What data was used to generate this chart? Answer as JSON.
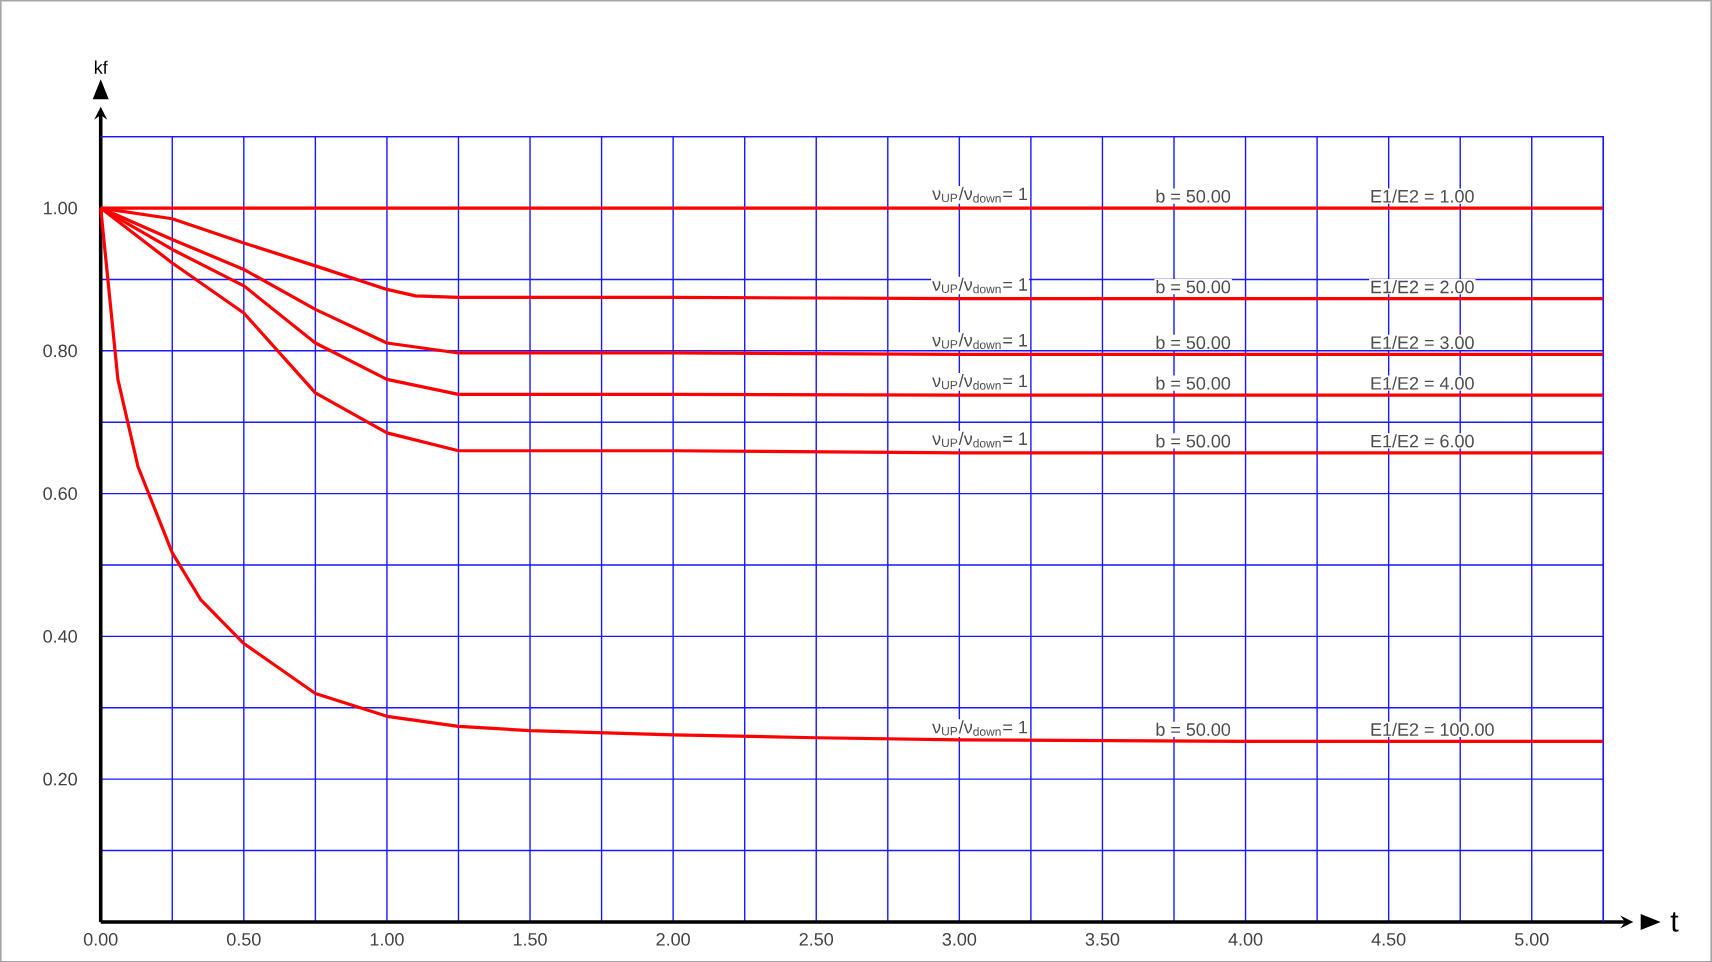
{
  "chart_data": {
    "type": "line",
    "xlabel": "t",
    "ylabel": "kf",
    "xlim": [
      0,
      5.25
    ],
    "ylim": [
      0,
      1.1
    ],
    "xticks": [
      {
        "value": 0,
        "label": "0.00"
      },
      {
        "value": 0.25,
        "label": null
      },
      {
        "value": 0.5,
        "label": "0.50"
      },
      {
        "value": 0.75,
        "label": null
      },
      {
        "value": 1,
        "label": "1.00"
      },
      {
        "value": 1.25,
        "label": null
      },
      {
        "value": 1.5,
        "label": "1.50"
      },
      {
        "value": 1.75,
        "label": null
      },
      {
        "value": 2,
        "label": "2.00"
      },
      {
        "value": 2.25,
        "label": null
      },
      {
        "value": 2.5,
        "label": "2.50"
      },
      {
        "value": 2.75,
        "label": null
      },
      {
        "value": 3,
        "label": "3.00"
      },
      {
        "value": 3.25,
        "label": null
      },
      {
        "value": 3.5,
        "label": "3.50"
      },
      {
        "value": 3.75,
        "label": null
      },
      {
        "value": 4,
        "label": "4.00"
      },
      {
        "value": 4.25,
        "label": null
      },
      {
        "value": 4.5,
        "label": "4.50"
      },
      {
        "value": 4.75,
        "label": null
      },
      {
        "value": 5,
        "label": "5.00"
      },
      {
        "value": 5.25,
        "label": null
      }
    ],
    "yticks": [
      {
        "value": 0.1,
        "label": null
      },
      {
        "value": 0.2,
        "label": "0.20"
      },
      {
        "value": 0.3,
        "label": null
      },
      {
        "value": 0.4,
        "label": "0.40"
      },
      {
        "value": 0.5,
        "label": null
      },
      {
        "value": 0.6,
        "label": "0.60"
      },
      {
        "value": 0.7,
        "label": null
      },
      {
        "value": 0.8,
        "label": "0.80"
      },
      {
        "value": 0.9,
        "label": null
      },
      {
        "value": 1.0,
        "label": "1.00"
      },
      {
        "value": 1.1,
        "label": null
      }
    ],
    "grid": true,
    "marker": "none",
    "line_style": "solid",
    "series": [
      {
        "color": "#ff0000",
        "x": [
          0,
          1,
          2,
          3,
          4,
          5,
          5.25
        ],
        "values": [
          1.0,
          1.0,
          1.0,
          1.0,
          1.0,
          1.0,
          1.0
        ]
      },
      {
        "color": "#ff0000",
        "x": [
          0,
          0.25,
          0.5,
          0.75,
          1.0,
          1.1,
          1.25,
          2.0,
          3.0,
          4.0,
          5.25
        ],
        "values": [
          1.0,
          0.985,
          0.951,
          0.919,
          0.886,
          0.877,
          0.875,
          0.875,
          0.873,
          0.873,
          0.873
        ]
      },
      {
        "color": "#ff0000",
        "x": [
          0,
          0.25,
          0.5,
          0.75,
          1.0,
          1.25,
          2.0,
          3.0,
          4.0,
          5.25
        ],
        "values": [
          1.0,
          0.956,
          0.914,
          0.858,
          0.811,
          0.797,
          0.797,
          0.795,
          0.795,
          0.795
        ]
      },
      {
        "color": "#ff0000",
        "x": [
          0,
          0.25,
          0.5,
          0.75,
          1.0,
          1.25,
          2.0,
          3.0,
          4.0,
          5.25
        ],
        "values": [
          1.0,
          0.942,
          0.891,
          0.811,
          0.76,
          0.739,
          0.739,
          0.738,
          0.738,
          0.738
        ]
      },
      {
        "color": "#ff0000",
        "x": [
          0,
          0.25,
          0.5,
          0.75,
          1.0,
          1.25,
          2.0,
          3.0,
          4.0,
          5.25
        ],
        "values": [
          1.0,
          0.923,
          0.853,
          0.741,
          0.685,
          0.66,
          0.66,
          0.657,
          0.657,
          0.657
        ]
      },
      {
        "color": "#ff0000",
        "x": [
          0,
          0.06,
          0.13,
          0.25,
          0.35,
          0.5,
          0.75,
          1.0,
          1.25,
          1.5,
          2.0,
          2.5,
          3.0,
          4.0,
          5.25
        ],
        "values": [
          1.0,
          0.76,
          0.638,
          0.517,
          0.451,
          0.39,
          0.32,
          0.288,
          0.274,
          0.268,
          0.262,
          0.258,
          0.255,
          0.253,
          0.253
        ]
      }
    ],
    "annotations": [
      {
        "text": "ν$_{UP}$/ν$_{down}$= 1",
        "x": 2.9,
        "y": 1.0
      },
      {
        "text": "b = 50.00",
        "x": 3.68,
        "y": 1.0
      },
      {
        "text": "E1/E2 = 1.00",
        "x": 4.43,
        "y": 1.0
      },
      {
        "text": "ν$_{UP}$/ν$_{down}$= 1",
        "x": 2.9,
        "y": 0.873
      },
      {
        "text": "b = 50.00",
        "x": 3.68,
        "y": 0.873
      },
      {
        "text": "E1/E2 = 2.00",
        "x": 4.43,
        "y": 0.873
      },
      {
        "text": "ν$_{UP}$/ν$_{down}$= 1",
        "x": 2.9,
        "y": 0.795
      },
      {
        "text": "b = 50.00",
        "x": 3.68,
        "y": 0.795
      },
      {
        "text": "E1/E2 = 3.00",
        "x": 4.43,
        "y": 0.795
      },
      {
        "text": "ν$_{UP}$/ν$_{down}$= 1",
        "x": 2.9,
        "y": 0.738
      },
      {
        "text": "b = 50.00",
        "x": 3.68,
        "y": 0.738
      },
      {
        "text": "E1/E2 = 4.00",
        "x": 4.43,
        "y": 0.738
      },
      {
        "text": "ν$_{UP}$/ν$_{down}$= 1",
        "x": 2.9,
        "y": 0.657
      },
      {
        "text": "b = 50.00",
        "x": 3.68,
        "y": 0.657
      },
      {
        "text": "E1/E2 = 6.00",
        "x": 4.43,
        "y": 0.657
      },
      {
        "text": "ν$_{UP}$/ν$_{down}$= 1",
        "x": 2.9,
        "y": 0.253
      },
      {
        "text": "b = 50.00",
        "x": 3.68,
        "y": 0.253
      },
      {
        "text": "E1/E2 = 100.00",
        "x": 4.43,
        "y": 0.253
      }
    ]
  }
}
